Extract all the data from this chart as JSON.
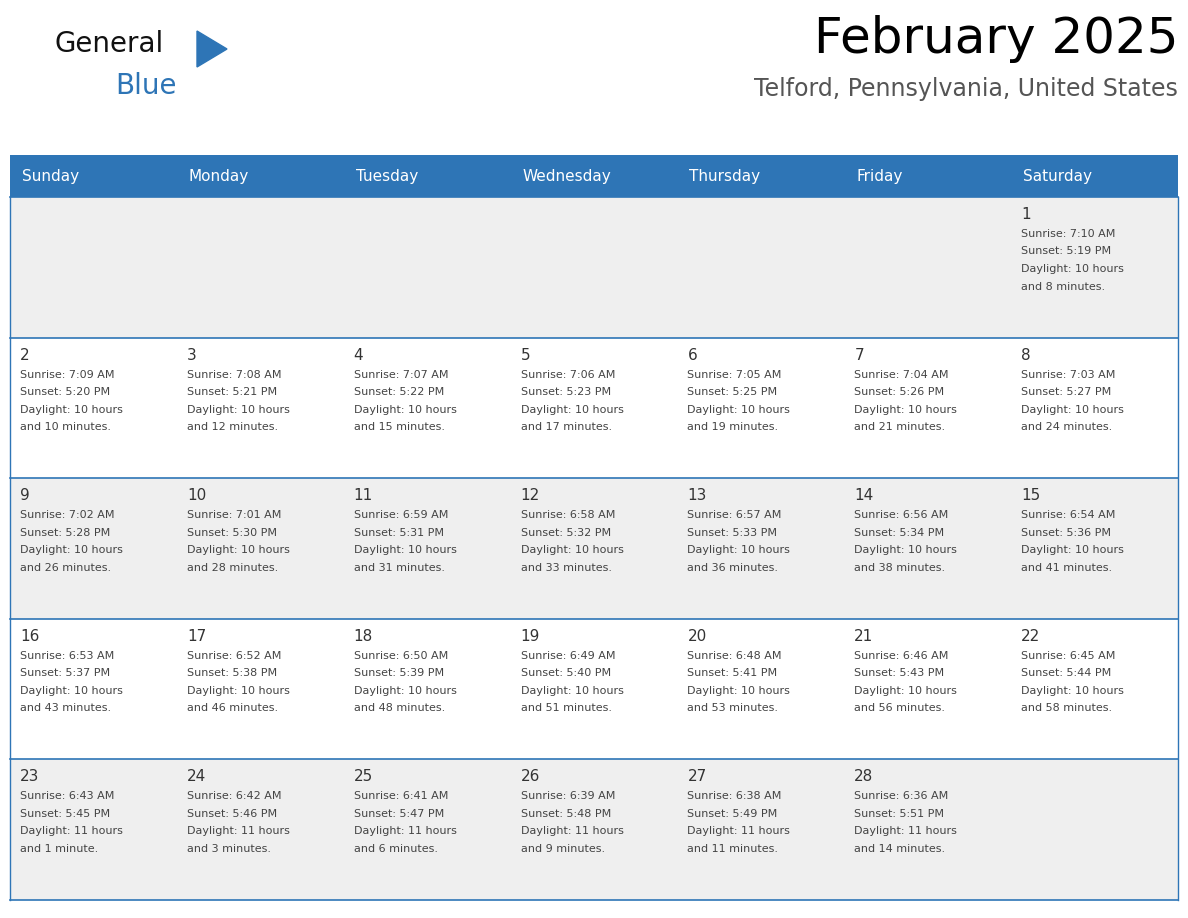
{
  "title": "February 2025",
  "subtitle": "Telford, Pennsylvania, United States",
  "header_bg": "#2E75B6",
  "header_text_color": "#FFFFFF",
  "days_of_week": [
    "Sunday",
    "Monday",
    "Tuesday",
    "Wednesday",
    "Thursday",
    "Friday",
    "Saturday"
  ],
  "cell_bg_odd": "#EFEFEF",
  "cell_bg_even": "#FFFFFF",
  "border_color": "#2E75B6",
  "day_number_color": "#333333",
  "info_text_color": "#444444",
  "calendar": [
    [
      null,
      null,
      null,
      null,
      null,
      null,
      1
    ],
    [
      2,
      3,
      4,
      5,
      6,
      7,
      8
    ],
    [
      9,
      10,
      11,
      12,
      13,
      14,
      15
    ],
    [
      16,
      17,
      18,
      19,
      20,
      21,
      22
    ],
    [
      23,
      24,
      25,
      26,
      27,
      28,
      null
    ]
  ],
  "cell_data": {
    "1": [
      "Sunrise: 7:10 AM",
      "Sunset: 5:19 PM",
      "Daylight: 10 hours",
      "and 8 minutes."
    ],
    "2": [
      "Sunrise: 7:09 AM",
      "Sunset: 5:20 PM",
      "Daylight: 10 hours",
      "and 10 minutes."
    ],
    "3": [
      "Sunrise: 7:08 AM",
      "Sunset: 5:21 PM",
      "Daylight: 10 hours",
      "and 12 minutes."
    ],
    "4": [
      "Sunrise: 7:07 AM",
      "Sunset: 5:22 PM",
      "Daylight: 10 hours",
      "and 15 minutes."
    ],
    "5": [
      "Sunrise: 7:06 AM",
      "Sunset: 5:23 PM",
      "Daylight: 10 hours",
      "and 17 minutes."
    ],
    "6": [
      "Sunrise: 7:05 AM",
      "Sunset: 5:25 PM",
      "Daylight: 10 hours",
      "and 19 minutes."
    ],
    "7": [
      "Sunrise: 7:04 AM",
      "Sunset: 5:26 PM",
      "Daylight: 10 hours",
      "and 21 minutes."
    ],
    "8": [
      "Sunrise: 7:03 AM",
      "Sunset: 5:27 PM",
      "Daylight: 10 hours",
      "and 24 minutes."
    ],
    "9": [
      "Sunrise: 7:02 AM",
      "Sunset: 5:28 PM",
      "Daylight: 10 hours",
      "and 26 minutes."
    ],
    "10": [
      "Sunrise: 7:01 AM",
      "Sunset: 5:30 PM",
      "Daylight: 10 hours",
      "and 28 minutes."
    ],
    "11": [
      "Sunrise: 6:59 AM",
      "Sunset: 5:31 PM",
      "Daylight: 10 hours",
      "and 31 minutes."
    ],
    "12": [
      "Sunrise: 6:58 AM",
      "Sunset: 5:32 PM",
      "Daylight: 10 hours",
      "and 33 minutes."
    ],
    "13": [
      "Sunrise: 6:57 AM",
      "Sunset: 5:33 PM",
      "Daylight: 10 hours",
      "and 36 minutes."
    ],
    "14": [
      "Sunrise: 6:56 AM",
      "Sunset: 5:34 PM",
      "Daylight: 10 hours",
      "and 38 minutes."
    ],
    "15": [
      "Sunrise: 6:54 AM",
      "Sunset: 5:36 PM",
      "Daylight: 10 hours",
      "and 41 minutes."
    ],
    "16": [
      "Sunrise: 6:53 AM",
      "Sunset: 5:37 PM",
      "Daylight: 10 hours",
      "and 43 minutes."
    ],
    "17": [
      "Sunrise: 6:52 AM",
      "Sunset: 5:38 PM",
      "Daylight: 10 hours",
      "and 46 minutes."
    ],
    "18": [
      "Sunrise: 6:50 AM",
      "Sunset: 5:39 PM",
      "Daylight: 10 hours",
      "and 48 minutes."
    ],
    "19": [
      "Sunrise: 6:49 AM",
      "Sunset: 5:40 PM",
      "Daylight: 10 hours",
      "and 51 minutes."
    ],
    "20": [
      "Sunrise: 6:48 AM",
      "Sunset: 5:41 PM",
      "Daylight: 10 hours",
      "and 53 minutes."
    ],
    "21": [
      "Sunrise: 6:46 AM",
      "Sunset: 5:43 PM",
      "Daylight: 10 hours",
      "and 56 minutes."
    ],
    "22": [
      "Sunrise: 6:45 AM",
      "Sunset: 5:44 PM",
      "Daylight: 10 hours",
      "and 58 minutes."
    ],
    "23": [
      "Sunrise: 6:43 AM",
      "Sunset: 5:45 PM",
      "Daylight: 11 hours",
      "and 1 minute."
    ],
    "24": [
      "Sunrise: 6:42 AM",
      "Sunset: 5:46 PM",
      "Daylight: 11 hours",
      "and 3 minutes."
    ],
    "25": [
      "Sunrise: 6:41 AM",
      "Sunset: 5:47 PM",
      "Daylight: 11 hours",
      "and 6 minutes."
    ],
    "26": [
      "Sunrise: 6:39 AM",
      "Sunset: 5:48 PM",
      "Daylight: 11 hours",
      "and 9 minutes."
    ],
    "27": [
      "Sunrise: 6:38 AM",
      "Sunset: 5:49 PM",
      "Daylight: 11 hours",
      "and 11 minutes."
    ],
    "28": [
      "Sunrise: 6:36 AM",
      "Sunset: 5:51 PM",
      "Daylight: 11 hours",
      "and 14 minutes."
    ]
  },
  "logo_text1": "General",
  "logo_text2": "Blue",
  "logo_text1_color": "#111111",
  "logo_text2_color": "#2E75B6",
  "logo_triangle_color": "#2E75B6",
  "title_fontsize": 36,
  "subtitle_fontsize": 17,
  "dow_fontsize": 11,
  "day_num_fontsize": 11,
  "info_fontsize": 8
}
